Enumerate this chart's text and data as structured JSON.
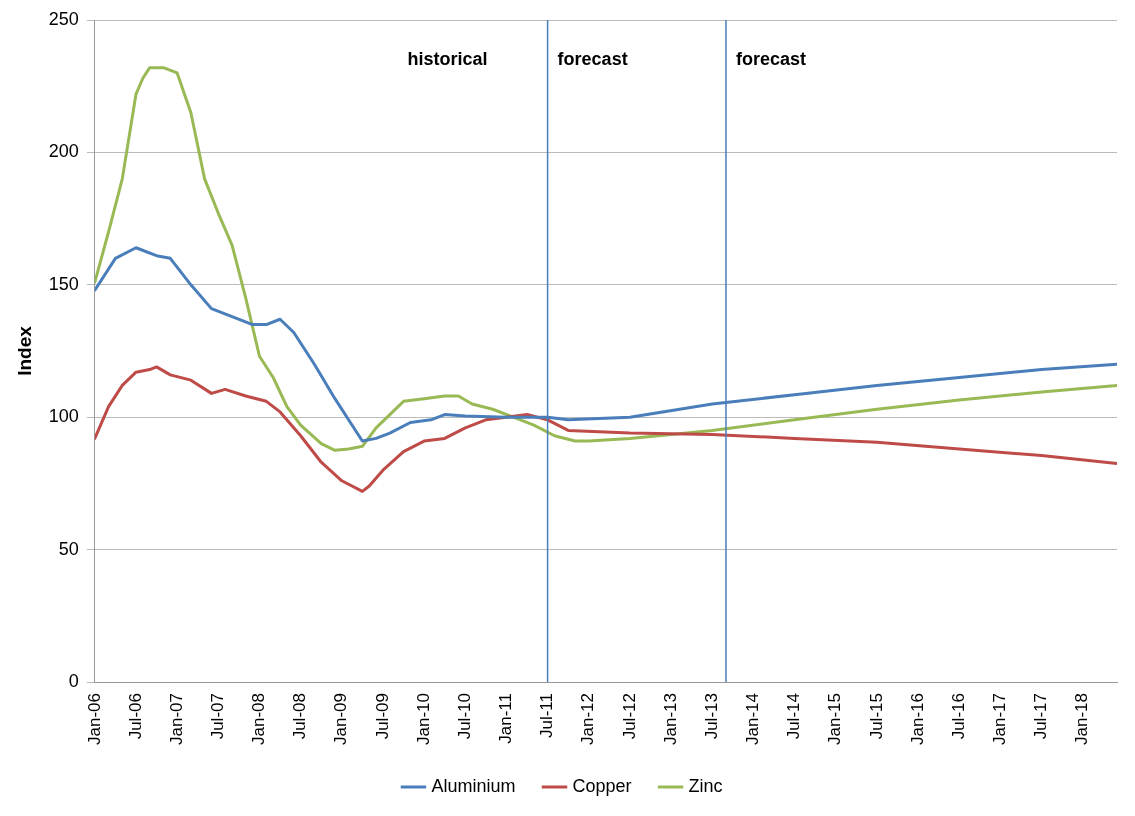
{
  "chart_data": {
    "type": "line",
    "ylabel": "Index",
    "ylim": [
      0,
      250
    ],
    "yticks": [
      0,
      50,
      100,
      150,
      200,
      250
    ],
    "xlim": [
      "2006-01",
      "2018-06"
    ],
    "xticks": [
      {
        "value": "2006-01",
        "label": "Jan-06"
      },
      {
        "value": "2006-07",
        "label": "Jul-06"
      },
      {
        "value": "2007-01",
        "label": "Jan-07"
      },
      {
        "value": "2007-07",
        "label": "Jul-07"
      },
      {
        "value": "2008-01",
        "label": "Jan-08"
      },
      {
        "value": "2008-07",
        "label": "Jul-08"
      },
      {
        "value": "2009-01",
        "label": "Jan-09"
      },
      {
        "value": "2009-07",
        "label": "Jul-09"
      },
      {
        "value": "2010-01",
        "label": "Jan-10"
      },
      {
        "value": "2010-07",
        "label": "Jul-10"
      },
      {
        "value": "2011-01",
        "label": "Jan-11"
      },
      {
        "value": "2011-07",
        "label": "Jul-11"
      },
      {
        "value": "2012-01",
        "label": "Jan-12"
      },
      {
        "value": "2012-07",
        "label": "Jul-12"
      },
      {
        "value": "2013-01",
        "label": "Jan-13"
      },
      {
        "value": "2013-07",
        "label": "Jul-13"
      },
      {
        "value": "2014-01",
        "label": "Jan-14"
      },
      {
        "value": "2014-07",
        "label": "Jul-14"
      },
      {
        "value": "2015-01",
        "label": "Jan-15"
      },
      {
        "value": "2015-07",
        "label": "Jul-15"
      },
      {
        "value": "2016-01",
        "label": "Jan-16"
      },
      {
        "value": "2016-07",
        "label": "Jul-16"
      },
      {
        "value": "2017-01",
        "label": "Jan-17"
      },
      {
        "value": "2017-07",
        "label": "Jul-17"
      },
      {
        "value": "2018-01",
        "label": "Jan-18"
      }
    ],
    "grid": "y",
    "legend": "bottom",
    "marker": "none",
    "line_style": "solid",
    "series": [
      {
        "name": "Aluminium",
        "color": "#4a7ebb",
        "x": [
          "2006-01",
          "2006-04",
          "2006-07",
          "2006-10",
          "2006-12",
          "2007-03",
          "2007-06",
          "2007-09",
          "2007-12",
          "2008-02",
          "2008-04",
          "2008-06",
          "2008-09",
          "2008-12",
          "2009-03",
          "2009-04",
          "2009-06",
          "2009-08",
          "2009-11",
          "2010-02",
          "2010-04",
          "2010-07",
          "2011-01",
          "2011-07",
          "2011-10",
          "2012-07",
          "2013-07",
          "2014-07",
          "2015-07",
          "2016-07",
          "2017-07",
          "2018-06"
        ],
        "values": [
          148,
          160,
          164,
          161,
          160,
          150,
          141,
          138,
          135,
          135,
          137,
          132,
          120,
          107,
          95,
          91,
          92,
          94,
          98,
          99,
          101,
          100.5,
          100,
          100,
          99,
          100,
          105,
          108.5,
          112,
          115,
          118,
          120
        ]
      },
      {
        "name": "Copper",
        "color": "#be4b48",
        "x": [
          "2006-01",
          "2006-03",
          "2006-05",
          "2006-07",
          "2006-09",
          "2006-10",
          "2006-12",
          "2007-03",
          "2007-06",
          "2007-08",
          "2007-11",
          "2008-02",
          "2008-04",
          "2008-07",
          "2008-10",
          "2009-01",
          "2009-04",
          "2009-05",
          "2009-07",
          "2009-10",
          "2010-01",
          "2010-04",
          "2010-07",
          "2010-10",
          "2011-01",
          "2011-04",
          "2011-07",
          "2011-10",
          "2012-07",
          "2013-07",
          "2014-07",
          "2015-07",
          "2016-07",
          "2017-07",
          "2018-06"
        ],
        "values": [
          92,
          104,
          112,
          117,
          118,
          119,
          116,
          114,
          109,
          110.5,
          108,
          106,
          102,
          93,
          83,
          76,
          72,
          74,
          80,
          87,
          91,
          92,
          96,
          99,
          100,
          101,
          99,
          95,
          94,
          93.5,
          92,
          90.5,
          88,
          85.5,
          82.5
        ]
      },
      {
        "name": "Zinc",
        "color": "#98b954",
        "x": [
          "2006-01",
          "2006-03",
          "2006-05",
          "2006-07",
          "2006-08",
          "2006-09",
          "2006-11",
          "2007-01",
          "2007-03",
          "2007-05",
          "2007-07",
          "2007-09",
          "2007-11",
          "2008-01",
          "2008-03",
          "2008-05",
          "2008-07",
          "2008-10",
          "2008-12",
          "2009-02",
          "2009-04",
          "2009-06",
          "2009-08",
          "2009-10",
          "2010-01",
          "2010-04",
          "2010-06",
          "2010-08",
          "2010-11",
          "2011-02",
          "2011-05",
          "2011-08",
          "2011-11",
          "2012-01",
          "2012-07",
          "2013-07",
          "2014-07",
          "2015-07",
          "2016-07",
          "2017-07",
          "2018-06"
        ],
        "values": [
          151,
          170,
          190,
          222,
          228,
          232,
          232,
          230,
          215,
          190,
          177,
          165,
          145,
          123,
          115,
          104,
          97,
          90,
          87.5,
          88,
          89,
          96,
          101,
          106,
          107,
          108,
          108,
          105,
          103,
          100,
          97,
          93,
          91,
          91,
          92,
          95,
          99,
          103,
          106.5,
          109.5,
          112
        ]
      }
    ],
    "ref_lines": [
      {
        "axis": "x",
        "value": "2011-07",
        "color": "#4a7ebb"
      },
      {
        "axis": "x",
        "value": "2013-09",
        "color": "#4a7ebb"
      }
    ],
    "annotations": [
      "historical",
      "forecast",
      "forecast"
    ]
  }
}
